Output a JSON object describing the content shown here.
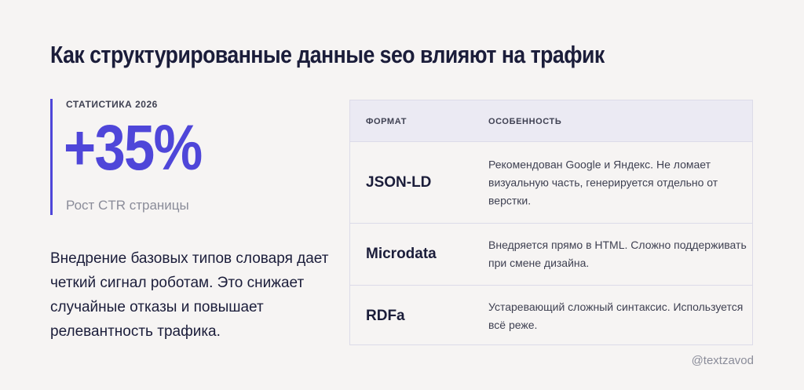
{
  "title": "Как структурированные данные seo влияют на трафик",
  "stat": {
    "label": "СТАТИСТИКА 2026",
    "value": "+35%",
    "caption": "Рост CTR страницы"
  },
  "description": "Внедрение базовых типов словаря дает четкий сигнал роботам. Это снижает случайные отказы и повышает релевантность трафика.",
  "table": {
    "headers": [
      "ФОРМАТ",
      "ОСОБЕННОСТЬ"
    ],
    "rows": [
      {
        "format": "JSON-LD",
        "feature": "Рекомендован Google и Яндекс. Не ломает визуальную часть, генерируется отдельно от верстки."
      },
      {
        "format": "Microdata",
        "feature": "Внедряется прямо в HTML. Сложно поддерживать при смене дизайна."
      },
      {
        "format": "RDFa",
        "feature": "Устаревающий сложный синтаксис. Используется всё реже."
      }
    ]
  },
  "handle": "@textzavod",
  "colors": {
    "accent": "#4f46d9",
    "text": "#1b1d3a",
    "muted": "#8a8c99"
  }
}
